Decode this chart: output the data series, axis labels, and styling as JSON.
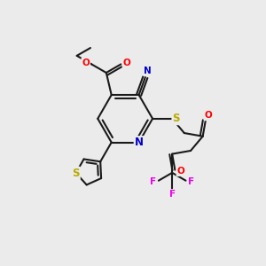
{
  "bg_color": "#ebebeb",
  "bond_color": "#1a1a1a",
  "bond_width": 1.5,
  "atom_colors": {
    "O": "#ff0000",
    "N": "#0000cc",
    "S": "#bbaa00",
    "F": "#ee00ee",
    "C": "#1a1a1a"
  },
  "font_size": 7.5,
  "figsize": [
    3.0,
    3.0
  ],
  "dpi": 100,
  "xlim": [
    0,
    10
  ],
  "ylim": [
    0,
    10
  ]
}
